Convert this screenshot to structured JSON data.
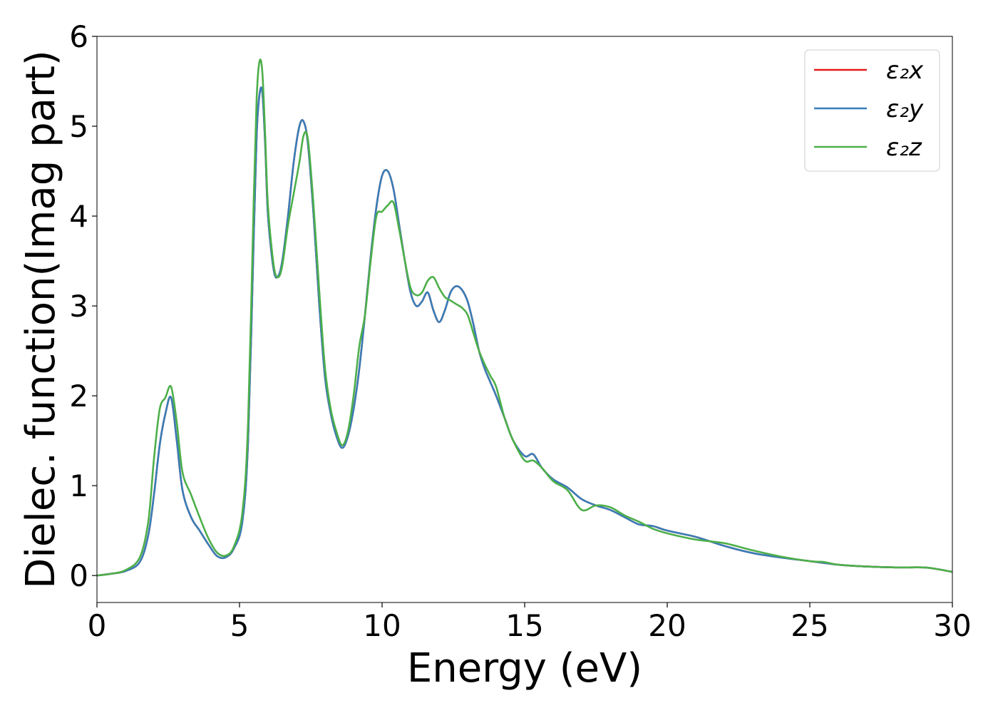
{
  "chart_data": {
    "type": "line",
    "xlabel": "Energy (eV)",
    "ylabel": "Dielec. function(Imag part)",
    "xlim": [
      0,
      30
    ],
    "ylim": [
      -0.3,
      6
    ],
    "xticks": [
      0,
      5,
      10,
      15,
      20,
      25,
      30
    ],
    "xtick_labels": [
      "0",
      "5",
      "10",
      "15",
      "20",
      "25",
      "30"
    ],
    "yticks": [
      0,
      1,
      2,
      3,
      4,
      5,
      6
    ],
    "ytick_labels": [
      "0",
      "1",
      "2",
      "3",
      "4",
      "5",
      "6"
    ],
    "grid": false,
    "legend_position": "top-right",
    "x": [
      0,
      0.5,
      1.0,
      1.5,
      1.8,
      2.0,
      2.2,
      2.4,
      2.6,
      2.8,
      3.0,
      3.3,
      3.6,
      3.9,
      4.2,
      4.5,
      4.8,
      5.1,
      5.3,
      5.5,
      5.6,
      5.7,
      5.8,
      5.9,
      6.0,
      6.2,
      6.35,
      6.5,
      6.7,
      6.9,
      7.1,
      7.25,
      7.4,
      7.6,
      7.8,
      8.0,
      8.2,
      8.4,
      8.6,
      8.8,
      9.0,
      9.2,
      9.4,
      9.6,
      9.8,
      10.0,
      10.2,
      10.4,
      10.6,
      10.8,
      11.0,
      11.2,
      11.4,
      11.6,
      11.8,
      12.0,
      12.2,
      12.4,
      12.6,
      12.8,
      13.0,
      13.2,
      13.4,
      13.6,
      13.8,
      14.0,
      14.3,
      14.6,
      15.0,
      15.3,
      15.6,
      16.0,
      16.5,
      17.0,
      17.5,
      18.0,
      18.5,
      19.0,
      19.5,
      20.0,
      21.0,
      22.0,
      23.0,
      24.0,
      25.0,
      25.5,
      26.0,
      27.0,
      28.0,
      29.0,
      29.5,
      30.0
    ],
    "series": [
      {
        "name": "ε₂x",
        "color": "#e41a1c",
        "values": [
          0.0,
          0.02,
          0.05,
          0.15,
          0.45,
          0.9,
          1.45,
          1.8,
          1.98,
          1.5,
          0.95,
          0.65,
          0.5,
          0.35,
          0.22,
          0.2,
          0.3,
          0.6,
          1.5,
          3.8,
          4.9,
          5.35,
          5.38,
          4.8,
          4.0,
          3.4,
          3.33,
          3.5,
          4.0,
          4.6,
          5.0,
          5.05,
          4.8,
          4.0,
          3.0,
          2.2,
          1.8,
          1.55,
          1.42,
          1.55,
          1.85,
          2.3,
          2.9,
          3.55,
          4.1,
          4.45,
          4.5,
          4.3,
          3.9,
          3.5,
          3.15,
          3.0,
          3.05,
          3.15,
          2.95,
          2.82,
          2.95,
          3.15,
          3.22,
          3.18,
          3.05,
          2.8,
          2.5,
          2.3,
          2.15,
          2.0,
          1.75,
          1.5,
          1.33,
          1.35,
          1.2,
          1.07,
          0.98,
          0.85,
          0.78,
          0.73,
          0.65,
          0.57,
          0.55,
          0.5,
          0.43,
          0.33,
          0.25,
          0.2,
          0.16,
          0.14,
          0.12,
          0.1,
          0.09,
          0.09,
          0.07,
          0.04
        ]
      },
      {
        "name": "ε₂y",
        "color": "#377eb8",
        "values": [
          0.0,
          0.02,
          0.05,
          0.15,
          0.45,
          0.9,
          1.45,
          1.8,
          1.98,
          1.5,
          0.95,
          0.65,
          0.5,
          0.35,
          0.22,
          0.2,
          0.3,
          0.6,
          1.5,
          3.8,
          4.9,
          5.35,
          5.38,
          4.8,
          4.0,
          3.4,
          3.33,
          3.5,
          4.0,
          4.6,
          5.0,
          5.05,
          4.8,
          4.0,
          3.0,
          2.2,
          1.8,
          1.55,
          1.42,
          1.55,
          1.85,
          2.3,
          2.9,
          3.55,
          4.1,
          4.45,
          4.5,
          4.3,
          3.9,
          3.5,
          3.15,
          3.0,
          3.05,
          3.15,
          2.95,
          2.82,
          2.95,
          3.15,
          3.22,
          3.18,
          3.05,
          2.8,
          2.5,
          2.3,
          2.15,
          2.0,
          1.75,
          1.5,
          1.33,
          1.35,
          1.2,
          1.07,
          0.98,
          0.85,
          0.78,
          0.73,
          0.65,
          0.57,
          0.55,
          0.5,
          0.43,
          0.33,
          0.25,
          0.2,
          0.16,
          0.14,
          0.12,
          0.1,
          0.09,
          0.09,
          0.07,
          0.04
        ]
      },
      {
        "name": "ε₂z",
        "color": "#4daf4a",
        "values": [
          0.0,
          0.02,
          0.06,
          0.2,
          0.6,
          1.3,
          1.85,
          1.98,
          2.1,
          1.7,
          1.15,
          0.9,
          0.65,
          0.42,
          0.26,
          0.22,
          0.32,
          0.7,
          1.7,
          4.2,
          5.3,
          5.72,
          5.6,
          4.9,
          4.1,
          3.45,
          3.32,
          3.45,
          3.9,
          4.25,
          4.6,
          4.9,
          4.85,
          4.1,
          3.15,
          2.3,
          1.85,
          1.6,
          1.45,
          1.6,
          2.0,
          2.55,
          2.9,
          3.5,
          4.0,
          4.05,
          4.12,
          4.15,
          3.85,
          3.5,
          3.2,
          3.12,
          3.15,
          3.28,
          3.32,
          3.2,
          3.1,
          3.06,
          3.02,
          2.98,
          2.9,
          2.7,
          2.5,
          2.35,
          2.22,
          2.1,
          1.75,
          1.5,
          1.28,
          1.28,
          1.2,
          1.05,
          0.95,
          0.73,
          0.78,
          0.76,
          0.67,
          0.6,
          0.52,
          0.47,
          0.4,
          0.36,
          0.28,
          0.21,
          0.16,
          0.15,
          0.12,
          0.1,
          0.09,
          0.09,
          0.07,
          0.04
        ]
      }
    ]
  }
}
